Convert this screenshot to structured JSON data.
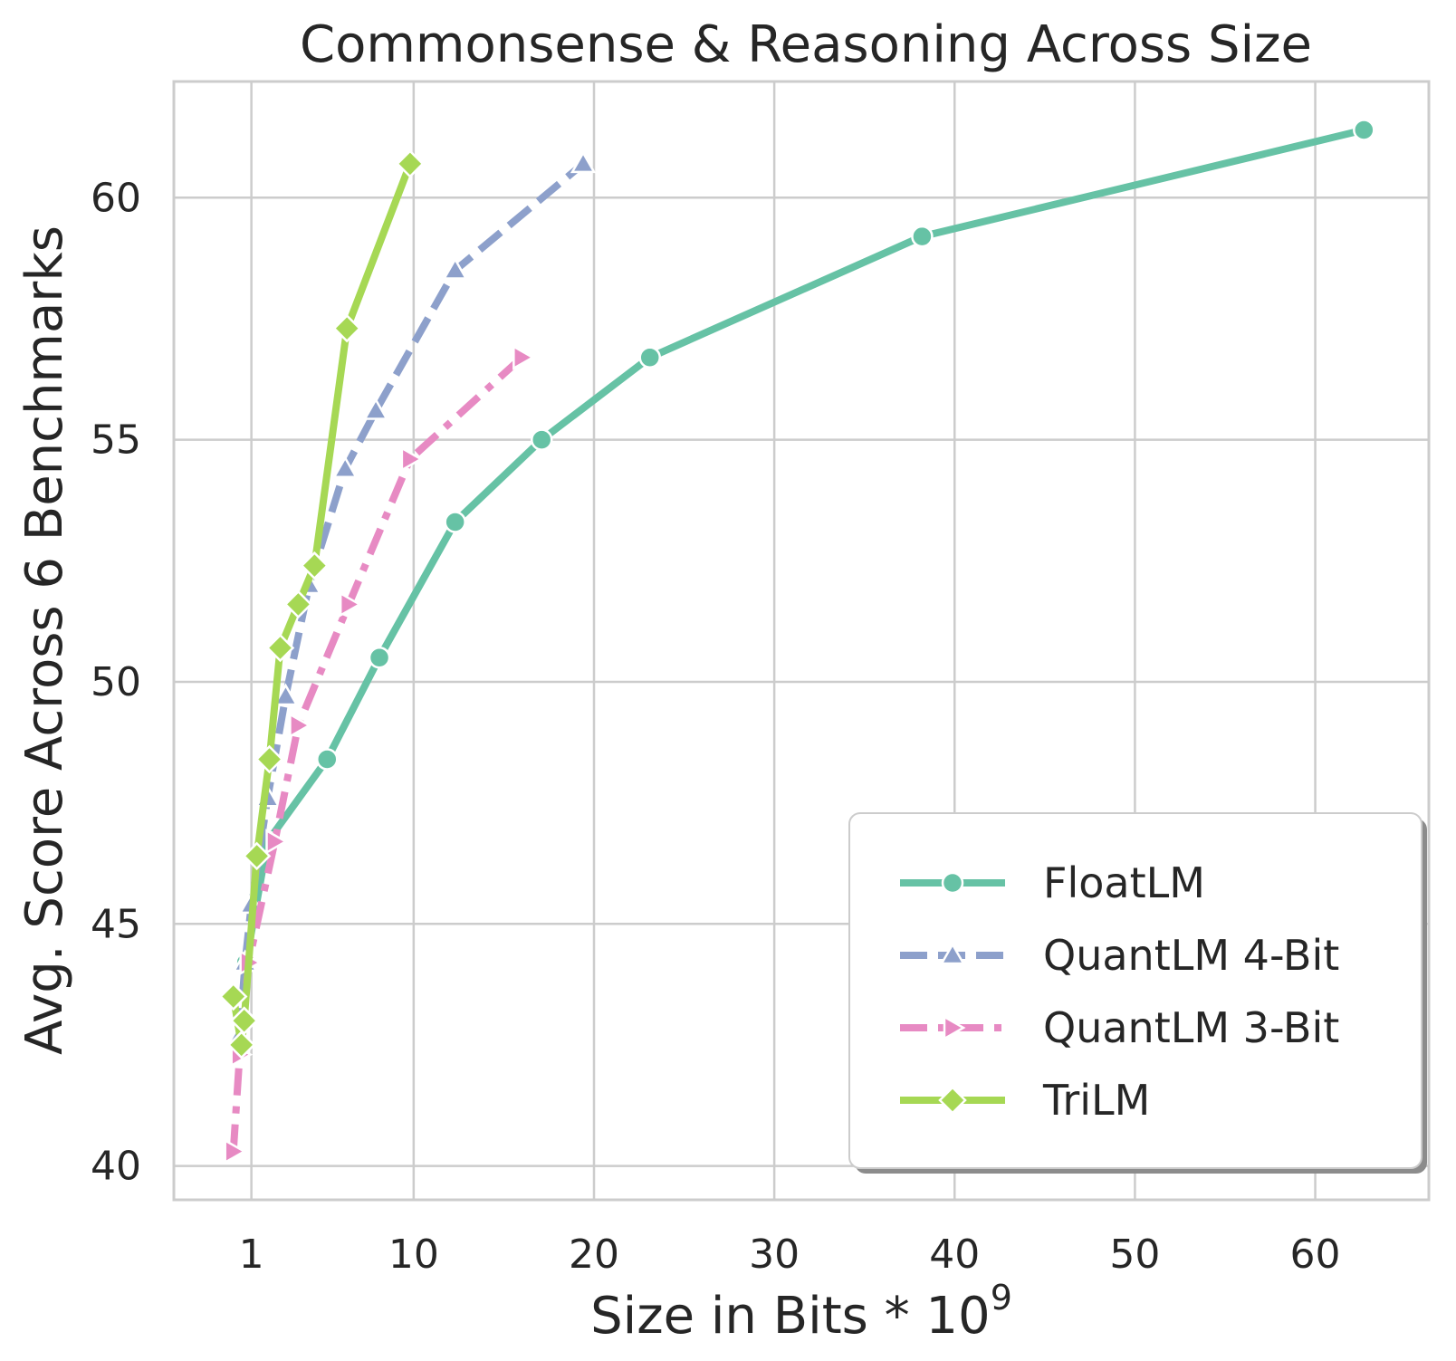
{
  "chart_data": {
    "type": "line",
    "title": "Commonsense & Reasoning Across Size",
    "xlabel": "Size in Bits * 10",
    "xlabel_exponent": "9",
    "ylabel": "Avg. Score Across 6 Benchmarks",
    "xlim": [
      -3.3,
      66.3
    ],
    "ylim": [
      39.3,
      62.4
    ],
    "xticks": [
      1,
      10,
      20,
      30,
      40,
      50,
      60
    ],
    "yticks": [
      40,
      45,
      50,
      55,
      60
    ],
    "grid": true,
    "legend_position": "lower-right",
    "series": [
      {
        "name": "FloatLM",
        "color": "#66c2a5",
        "marker": "circle",
        "dash": "solid",
        "x": [
          0.7,
          1.9,
          5.2,
          8.1,
          12.3,
          17.1,
          23.1,
          38.2,
          62.7
        ],
        "y": [
          44.2,
          46.7,
          48.4,
          50.5,
          53.3,
          55.0,
          56.7,
          59.2,
          61.4
        ]
      },
      {
        "name": "QuantLM 4-Bit",
        "color": "#8da0cb",
        "marker": "triangle",
        "dash": "dashed",
        "x": [
          0.35,
          0.65,
          1.0,
          1.9,
          2.9,
          4.2,
          6.2,
          7.9,
          12.3,
          19.4
        ],
        "y": [
          42.7,
          44.2,
          45.4,
          47.6,
          49.7,
          52.0,
          54.4,
          55.6,
          58.5,
          60.7
        ]
      },
      {
        "name": "QuantLM 3-Bit",
        "color": "#e78ac3",
        "marker": "triangle-right",
        "dash": "dashdot",
        "x": [
          0.0,
          0.35,
          0.85,
          2.3,
          3.6,
          6.4,
          9.8,
          16.0
        ],
        "y": [
          40.3,
          42.3,
          44.2,
          46.7,
          49.1,
          51.6,
          54.6,
          56.7
        ]
      },
      {
        "name": "TriLM",
        "color": "#a6d854",
        "marker": "diamond",
        "dash": "solid",
        "x": [
          0.0,
          0.45,
          0.6,
          1.3,
          2.0,
          2.6,
          3.6,
          4.5,
          6.3,
          9.8
        ],
        "y": [
          43.5,
          42.5,
          43.0,
          46.4,
          48.4,
          50.7,
          51.6,
          52.4,
          57.3,
          60.7
        ]
      }
    ]
  }
}
